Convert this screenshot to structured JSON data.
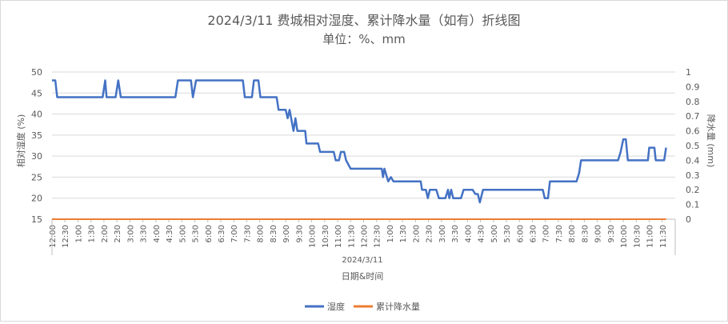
{
  "chart_data": {
    "type": "line",
    "title": "2024/3/11 费城相对湿度、累计降水量（如有）折线图",
    "subtitle": "单位：%、mm",
    "xlabel": "日期&时间",
    "x_group_label": "2024/3/11",
    "ylabel": "相对湿度 (%)",
    "y2label": "降水量 (mm)",
    "ylim": [
      15,
      50
    ],
    "y2lim": [
      0,
      1
    ],
    "y_ticks": [
      "15",
      "20",
      "25",
      "30",
      "35",
      "40",
      "45",
      "50"
    ],
    "y2_ticks": [
      "0",
      "0.1",
      "0.2",
      "0.3",
      "0.4",
      "0.5",
      "0.6",
      "0.7",
      "0.8",
      "0.9",
      "1"
    ],
    "x_ticks": [
      "12:00",
      "12:30",
      "1:00",
      "1:30",
      "2:00",
      "2:30",
      "3:00",
      "3:30",
      "4:00",
      "4:30",
      "5:00",
      "5:30",
      "6:00",
      "6:30",
      "7:00",
      "7:30",
      "8:00",
      "8:30",
      "9:00",
      "9:30",
      "10:00",
      "10:30",
      "11:00",
      "11:30",
      "12:00",
      "12:30",
      "1:00",
      "1:30",
      "2:00",
      "2:30",
      "3:00",
      "3:30",
      "4:00",
      "4:30",
      "5:00",
      "5:30",
      "6:00",
      "6:30",
      "7:00",
      "7:30",
      "8:00",
      "8:30",
      "9:00",
      "9:30",
      "10:00",
      "10:30",
      "11:00",
      "11:30"
    ],
    "grid": true,
    "legend_position": "bottom",
    "series": [
      {
        "name": "湿度",
        "axis": "left",
        "color": "#4472c4",
        "points": [
          [
            0,
            48
          ],
          [
            0.25,
            48
          ],
          [
            0.4,
            44
          ],
          [
            1.0,
            44
          ],
          [
            2.0,
            44
          ],
          [
            3.0,
            44
          ],
          [
            3.9,
            44
          ],
          [
            4.1,
            48
          ],
          [
            4.2,
            44
          ],
          [
            4.9,
            44
          ],
          [
            5.1,
            48
          ],
          [
            5.3,
            44
          ],
          [
            6,
            44
          ],
          [
            7,
            44
          ],
          [
            8,
            44
          ],
          [
            9,
            44
          ],
          [
            9.5,
            44
          ],
          [
            9.7,
            48
          ],
          [
            10.2,
            48
          ],
          [
            10.7,
            48
          ],
          [
            10.85,
            44
          ],
          [
            11.1,
            48
          ],
          [
            12,
            48
          ],
          [
            13,
            48
          ],
          [
            14,
            48
          ],
          [
            14.7,
            48
          ],
          [
            14.85,
            44
          ],
          [
            15.4,
            44
          ],
          [
            15.55,
            48
          ],
          [
            15.9,
            48
          ],
          [
            16.05,
            44
          ],
          [
            17,
            44
          ],
          [
            17.3,
            44
          ],
          [
            17.45,
            41
          ],
          [
            18.0,
            41
          ],
          [
            18.15,
            39
          ],
          [
            18.3,
            41
          ],
          [
            18.6,
            36
          ],
          [
            18.75,
            39
          ],
          [
            18.9,
            36
          ],
          [
            19.5,
            36
          ],
          [
            19.6,
            33
          ],
          [
            20.5,
            33
          ],
          [
            20.65,
            31
          ],
          [
            21.7,
            31
          ],
          [
            21.85,
            29
          ],
          [
            22.1,
            29
          ],
          [
            22.25,
            31
          ],
          [
            22.5,
            31
          ],
          [
            22.65,
            29
          ],
          [
            23,
            27
          ],
          [
            24,
            27
          ],
          [
            25,
            27
          ],
          [
            25.4,
            27
          ],
          [
            25.5,
            25
          ],
          [
            25.6,
            27
          ],
          [
            25.9,
            24
          ],
          [
            26.1,
            25
          ],
          [
            26.3,
            24
          ],
          [
            27,
            24
          ],
          [
            28,
            24
          ],
          [
            28.4,
            24
          ],
          [
            28.5,
            22
          ],
          [
            28.8,
            22
          ],
          [
            28.95,
            20
          ],
          [
            29.1,
            22
          ],
          [
            29.6,
            22
          ],
          [
            29.8,
            20
          ],
          [
            30.3,
            20
          ],
          [
            30.5,
            22
          ],
          [
            30.6,
            20
          ],
          [
            30.75,
            22
          ],
          [
            30.9,
            20
          ],
          [
            31.5,
            20
          ],
          [
            31.7,
            22
          ],
          [
            32.4,
            22
          ],
          [
            32.6,
            21
          ],
          [
            32.8,
            21
          ],
          [
            32.95,
            19
          ],
          [
            33.2,
            22
          ],
          [
            34,
            22
          ],
          [
            35,
            22
          ],
          [
            36,
            22
          ],
          [
            37,
            22
          ],
          [
            37.8,
            22
          ],
          [
            37.95,
            20
          ],
          [
            38.2,
            20
          ],
          [
            38.35,
            24
          ],
          [
            39,
            24
          ],
          [
            40,
            24
          ],
          [
            40.4,
            24
          ],
          [
            40.6,
            26
          ],
          [
            40.75,
            29
          ],
          [
            41,
            29
          ],
          [
            42,
            29
          ],
          [
            43,
            29
          ],
          [
            43.6,
            29
          ],
          [
            43.8,
            31
          ],
          [
            44.0,
            34
          ],
          [
            44.2,
            34
          ],
          [
            44.35,
            29
          ],
          [
            45,
            29
          ],
          [
            45.7,
            29
          ],
          [
            45.9,
            29
          ],
          [
            46.0,
            32
          ],
          [
            46.4,
            32
          ],
          [
            46.5,
            29
          ],
          [
            47,
            29
          ],
          [
            47.15,
            29
          ],
          [
            47.3,
            32
          ]
        ]
      },
      {
        "name": "累计降水量",
        "axis": "right",
        "color": "#ed7d31",
        "points": [
          [
            0,
            0
          ],
          [
            47.3,
            0
          ]
        ]
      }
    ]
  }
}
